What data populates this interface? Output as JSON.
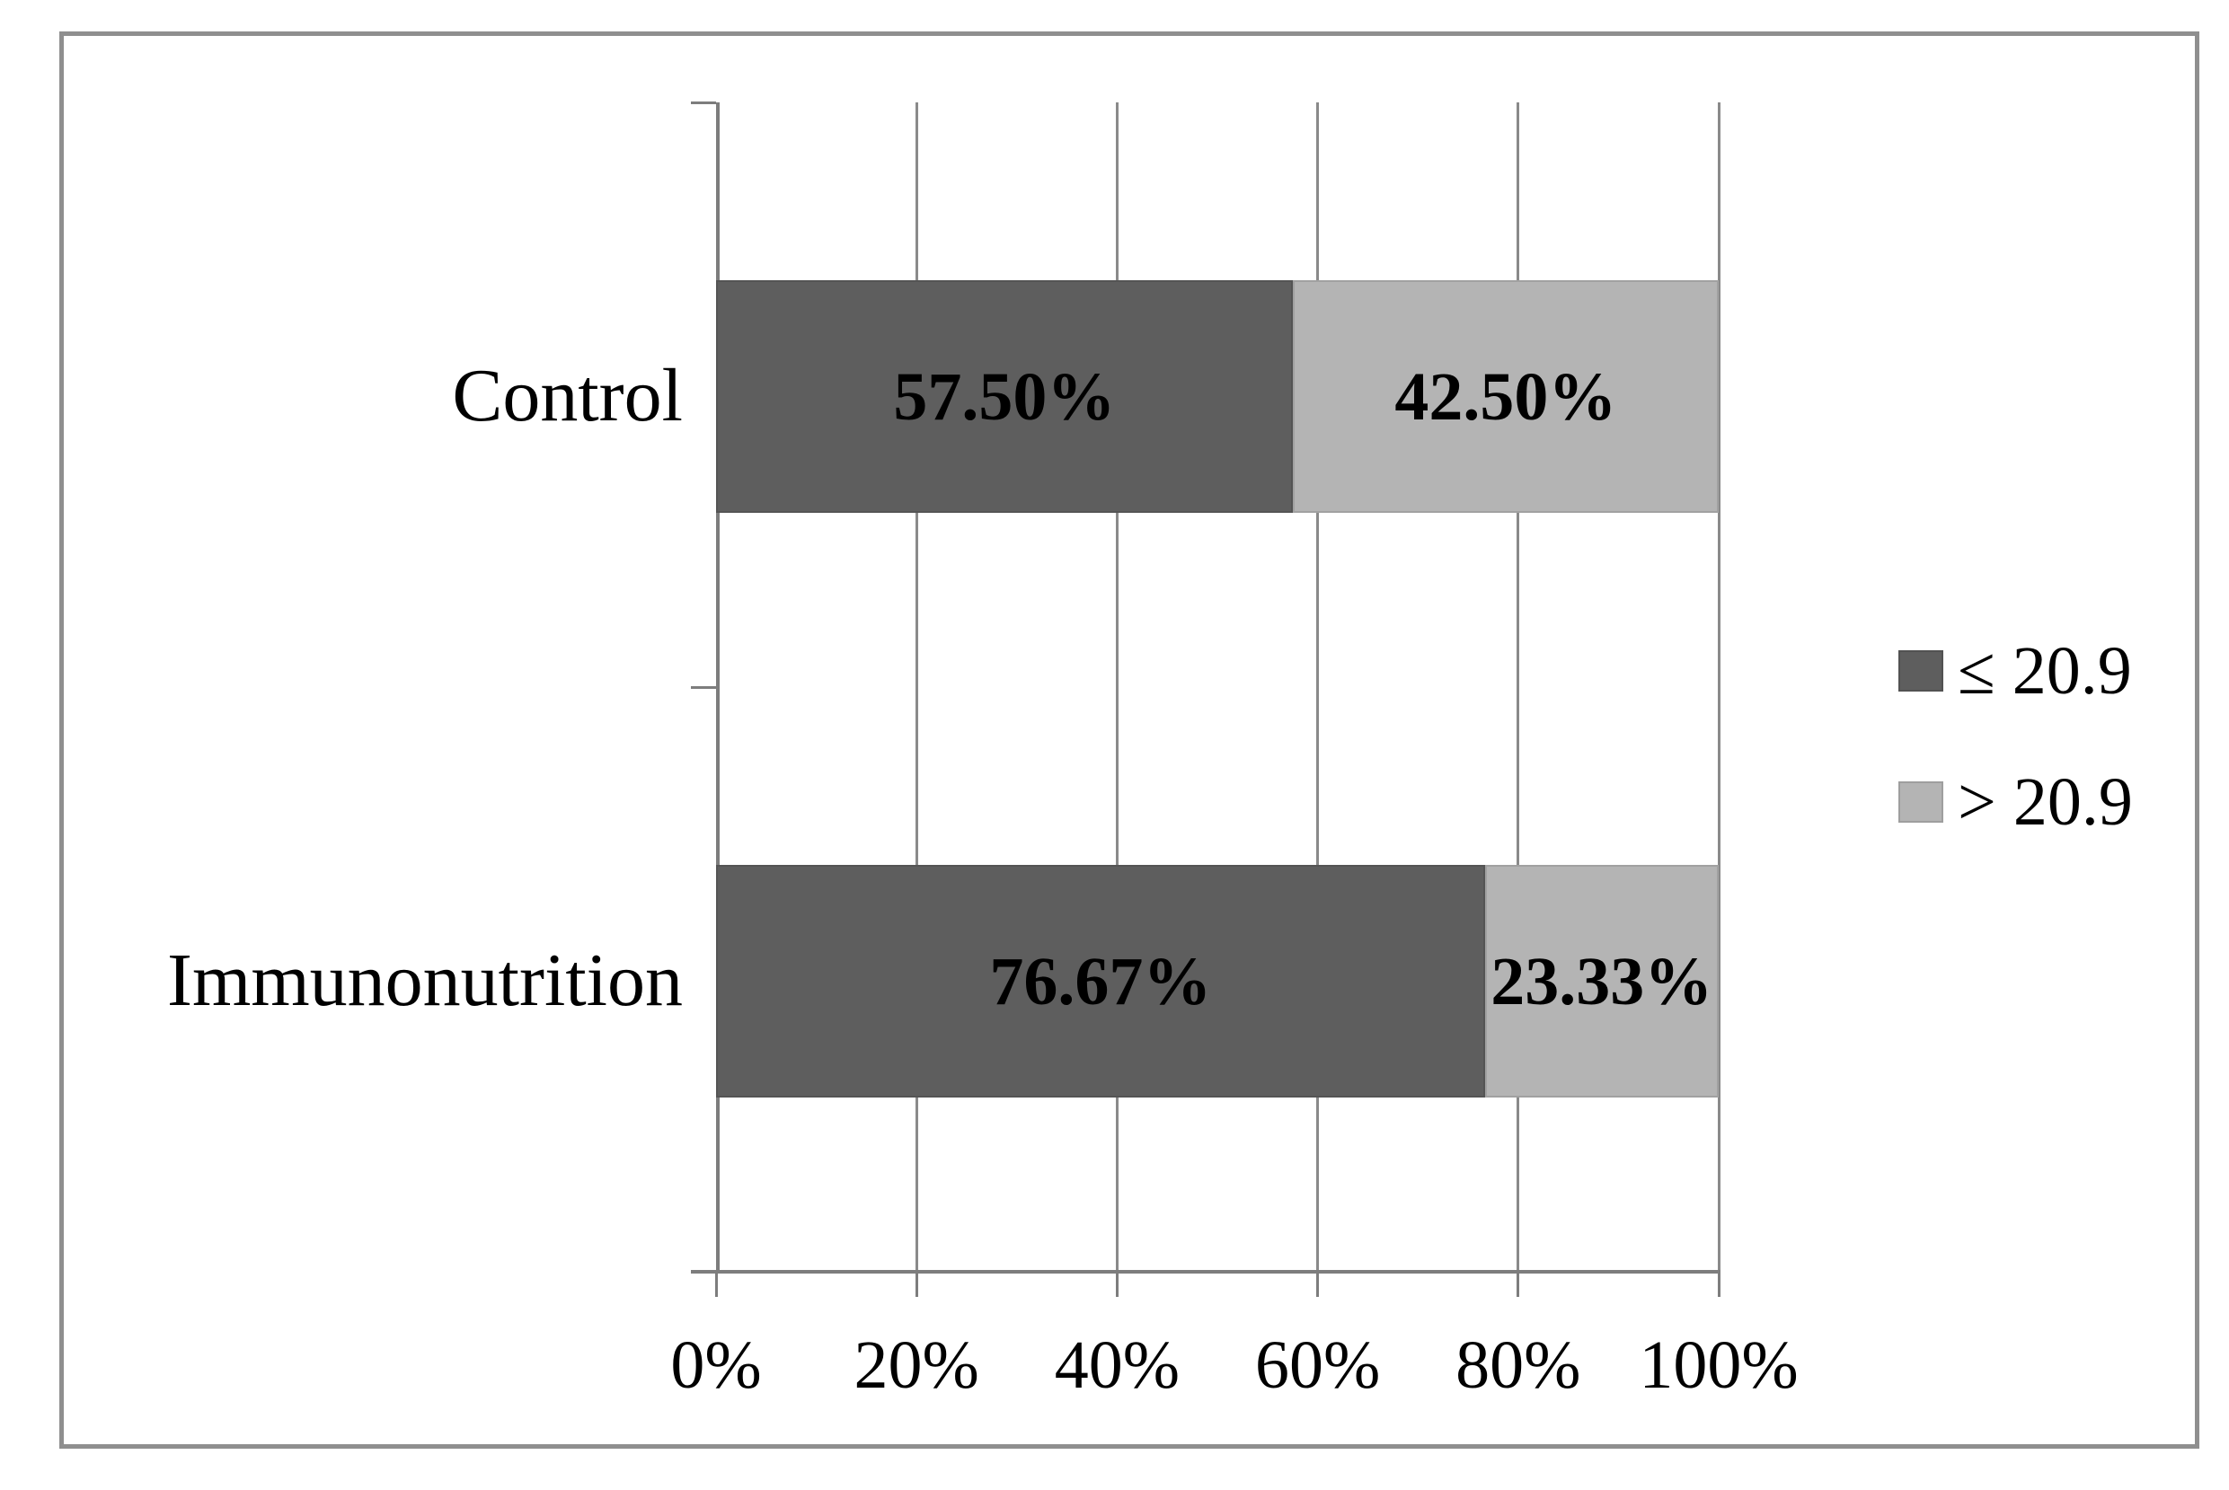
{
  "chart_data": {
    "type": "bar",
    "orientation": "horizontal",
    "stacked": true,
    "categories": [
      "Control",
      "Immunonutrition"
    ],
    "series": [
      {
        "name": "≤ 20.9",
        "color": "#5e5e5e",
        "values": [
          57.5,
          76.67
        ],
        "labels": [
          "57.50%",
          "76.67%"
        ]
      },
      {
        "name": "> 20.9",
        "color": "#b4b4b4",
        "values": [
          42.5,
          23.33
        ],
        "labels": [
          "42.50%",
          "23.33%"
        ]
      }
    ],
    "x_axis": {
      "max": 100,
      "tick_values": [
        0,
        20,
        40,
        60,
        80,
        100
      ],
      "tick_labels": [
        "0%",
        "20%",
        "40%",
        "60%",
        "80%",
        "100%"
      ]
    },
    "grid": "vertical-gridlines-on",
    "legend_position": "right",
    "colors": {
      "dark_series": "#5e5e5e",
      "light_series": "#b4b4b4",
      "gridline": "#8a8a8a",
      "axis": "#7d7d7d",
      "frame_border": "#8f8f8f",
      "background": "#ffffff",
      "text": "#000000"
    }
  }
}
